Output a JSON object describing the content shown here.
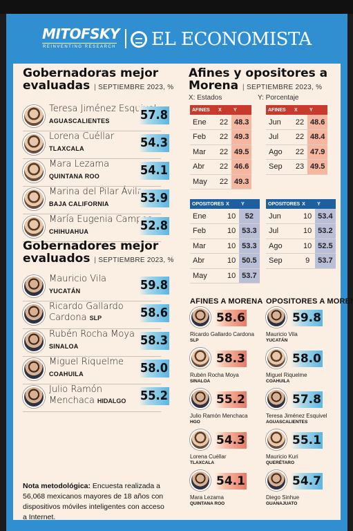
{
  "header": {
    "logo_left": "MITOFSKY",
    "logo_left_sub": "REINVENTING RESEARCH",
    "logo_right": "EL ECONOMISTA"
  },
  "governadoras": {
    "title_1": "Gobernadoras mejor",
    "title_2": "evaluadas",
    "subtitle": "SEPTIEMBRE 2023, %",
    "items": [
      {
        "name": "Teresa Jiménez Esquivel",
        "state": "AGUASCALIENTES",
        "score": "57.8"
      },
      {
        "name": "Lorena Cuéllar",
        "state": "TLAXCALA",
        "score": "54.3"
      },
      {
        "name": "Mara Lezama",
        "state": "QUINTANA ROO",
        "score": "54.1"
      },
      {
        "name": "Marina del Pilar Ávila",
        "state": "BAJA CALIFORNIA",
        "score": "53.9"
      },
      {
        "name": "María Eugenia Campos",
        "state": "CHIHUAHUA",
        "score": "52.8"
      }
    ]
  },
  "governadores": {
    "title_1": "Gobernadores mejor",
    "title_2": "evaluados",
    "subtitle": "SEPTIEMBRE 2023, %",
    "items": [
      {
        "name": "Mauricio Vila",
        "state": "YUCATÁN",
        "score": "59.8"
      },
      {
        "name_1": "Ricardo Gallardo",
        "name_2": "Cardona",
        "state": "SLP",
        "score": "58.6"
      },
      {
        "name": "Rubén Rocha Moya",
        "state": "SINALOA",
        "score": "58.3"
      },
      {
        "name": "Miguel Riquelme",
        "state": "COAHUILA",
        "score": "58.0"
      },
      {
        "name_1": "Julio Ramón",
        "name_2": "Menchaca",
        "state": "HIDALGO",
        "score": "55.2"
      }
    ]
  },
  "afines": {
    "title_1": "Afines y opositores a",
    "title_2": "Morena",
    "subtitle": "SEPTIEMBRE 2023, %",
    "x_label": "X: Estados",
    "y_label": "Y: Porcentaje",
    "col_x": "X",
    "col_y": "Y",
    "afines_label": "AFINES",
    "opositores_label": "OPOSITORES",
    "afines_left": [
      {
        "m": "Ene",
        "x": "22",
        "y": "48.3"
      },
      {
        "m": "Feb",
        "x": "22",
        "y": "49.3"
      },
      {
        "m": "Mar",
        "x": "22",
        "y": "49.5"
      },
      {
        "m": "Abr",
        "x": "22",
        "y": "46.6"
      },
      {
        "m": "May",
        "x": "22",
        "y": "49.3"
      }
    ],
    "afines_right": [
      {
        "m": "Jun",
        "x": "22",
        "y": "48.6"
      },
      {
        "m": "Jul",
        "x": "22",
        "y": "48.4"
      },
      {
        "m": "Ago",
        "x": "22",
        "y": "47.9"
      },
      {
        "m": "Sep",
        "x": "23",
        "y": "49.5"
      }
    ],
    "opos_left": [
      {
        "m": "Ene",
        "x": "10",
        "y": "52"
      },
      {
        "m": "Feb",
        "x": "10",
        "y": "53.3"
      },
      {
        "m": "Mar",
        "x": "10",
        "y": "53.3"
      },
      {
        "m": "Abr",
        "x": "10",
        "y": "50.5"
      },
      {
        "m": "May",
        "x": "10",
        "y": "53.7"
      }
    ],
    "opos_right": [
      {
        "m": "Jun",
        "x": "10",
        "y": "53.4"
      },
      {
        "m": "Jul",
        "x": "10",
        "y": "53.2"
      },
      {
        "m": "Ago",
        "x": "10",
        "y": "52.5"
      },
      {
        "m": "Sep",
        "x": "9",
        "y": "53.7"
      }
    ]
  },
  "afines_a_morena": {
    "title": "AFINES A MORENA",
    "items": [
      {
        "name": "Ricardo Gallardo Cardona",
        "state": "SLP",
        "score": "58.6"
      },
      {
        "name": "Rubén Rocha Moya",
        "state": "SINALOA",
        "score": "58.3"
      },
      {
        "name": "Julio Ramón Menchaca",
        "state": "HGO",
        "score": "55.2"
      },
      {
        "name": "Lorena Cuéllar",
        "state": "TLAXCALA",
        "score": "54.3"
      },
      {
        "name": "Mara Lezama",
        "state": "QUINTANA ROO",
        "score": "54.1"
      }
    ]
  },
  "opositores_a_morena": {
    "title": "OPOSITORES A MORENA",
    "items": [
      {
        "name": "Mauricio Vila",
        "state": "YUCATÁN",
        "score": "59.8"
      },
      {
        "name": "Miguel Riquelme",
        "state": "COAHUILA",
        "score": "58.0"
      },
      {
        "name": "Teresa Jiménez Esquivel",
        "state": "AGUASCALIENTES",
        "score": "57.8"
      },
      {
        "name": "Mauricio Kuri",
        "state": "QUERÉTARO",
        "score": "55.1"
      },
      {
        "name": "Diego Sinhue",
        "state": "GUANAJUATO",
        "score": "54.7"
      }
    ]
  },
  "note": {
    "label": "Nota metodológica:",
    "text": " Encuesta realizada a 56,068 mexicanos mayores de 18 años con dispositivos móviles inteligentes con acceso a Internet."
  },
  "colors": {
    "frame_blue": "#2f8fd0",
    "panel_bg": "#fbeee2",
    "afines_red": "#c93a2e",
    "opositores_blue": "#1e5fa0"
  }
}
